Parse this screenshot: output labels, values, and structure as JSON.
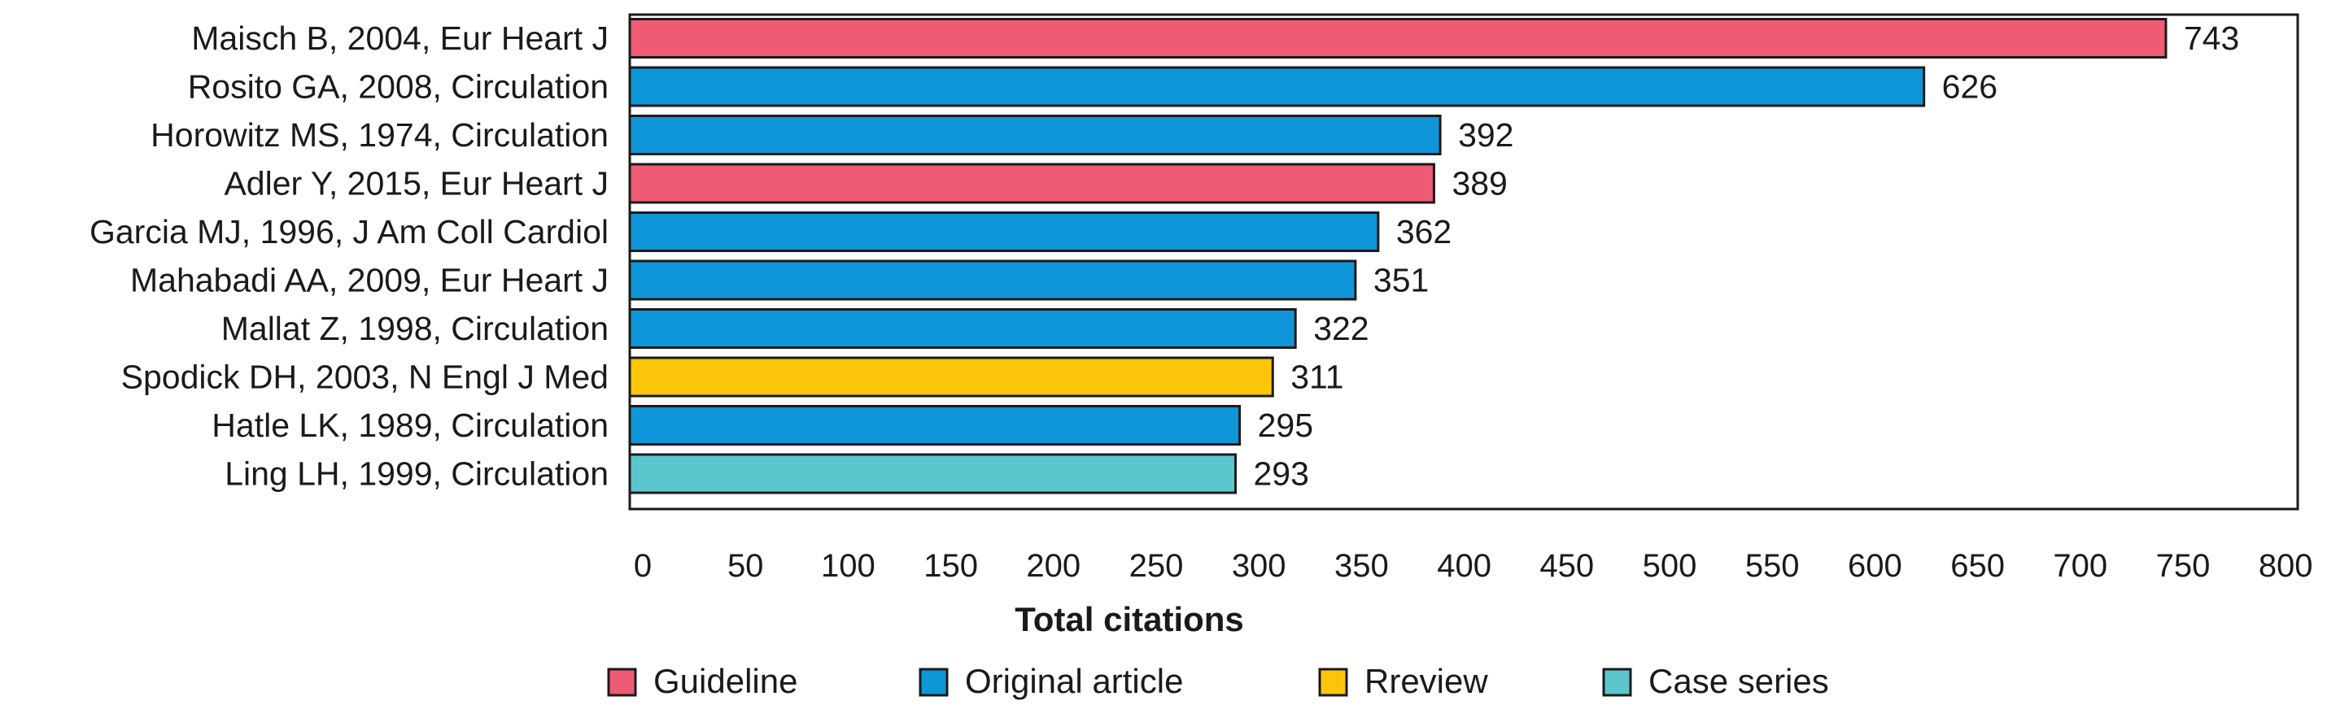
{
  "chart_data": {
    "type": "bar",
    "orientation": "horizontal",
    "xlabel": "Total citations",
    "xlim": [
      0,
      800
    ],
    "xticks": [
      0,
      50,
      100,
      150,
      200,
      250,
      300,
      350,
      400,
      450,
      500,
      550,
      600,
      650,
      700,
      750,
      800
    ],
    "grid": false,
    "legend_position": "bottom",
    "categories": [
      "Maisch B, 2004, Eur Heart J",
      "Rosito GA, 2008, Circulation",
      "Horowitz MS, 1974, Circulation",
      "Adler Y, 2015, Eur Heart J",
      "Garcia MJ, 1996, J Am Coll Cardiol",
      "Mahabadi AA, 2009, Eur Heart J",
      "Mallat Z, 1998, Circulation",
      "Spodick DH, 2003, N Engl J Med",
      "Hatle LK, 1989, Circulation",
      "Ling LH, 1999, Circulation"
    ],
    "values": [
      743,
      626,
      392,
      389,
      362,
      351,
      322,
      311,
      295,
      293
    ],
    "bar_types": [
      "Guideline",
      "Original article",
      "Original article",
      "Guideline",
      "Original article",
      "Original article",
      "Original article",
      "Rreview",
      "Original article",
      "Case series"
    ],
    "legend": [
      {
        "label": "Guideline",
        "color": "#ef5b74"
      },
      {
        "label": "Original article",
        "color": "#0f96d8"
      },
      {
        "label": "Rreview",
        "color": "#fbc60a"
      },
      {
        "label": "Case series",
        "color": "#5cc6cf"
      }
    ]
  }
}
